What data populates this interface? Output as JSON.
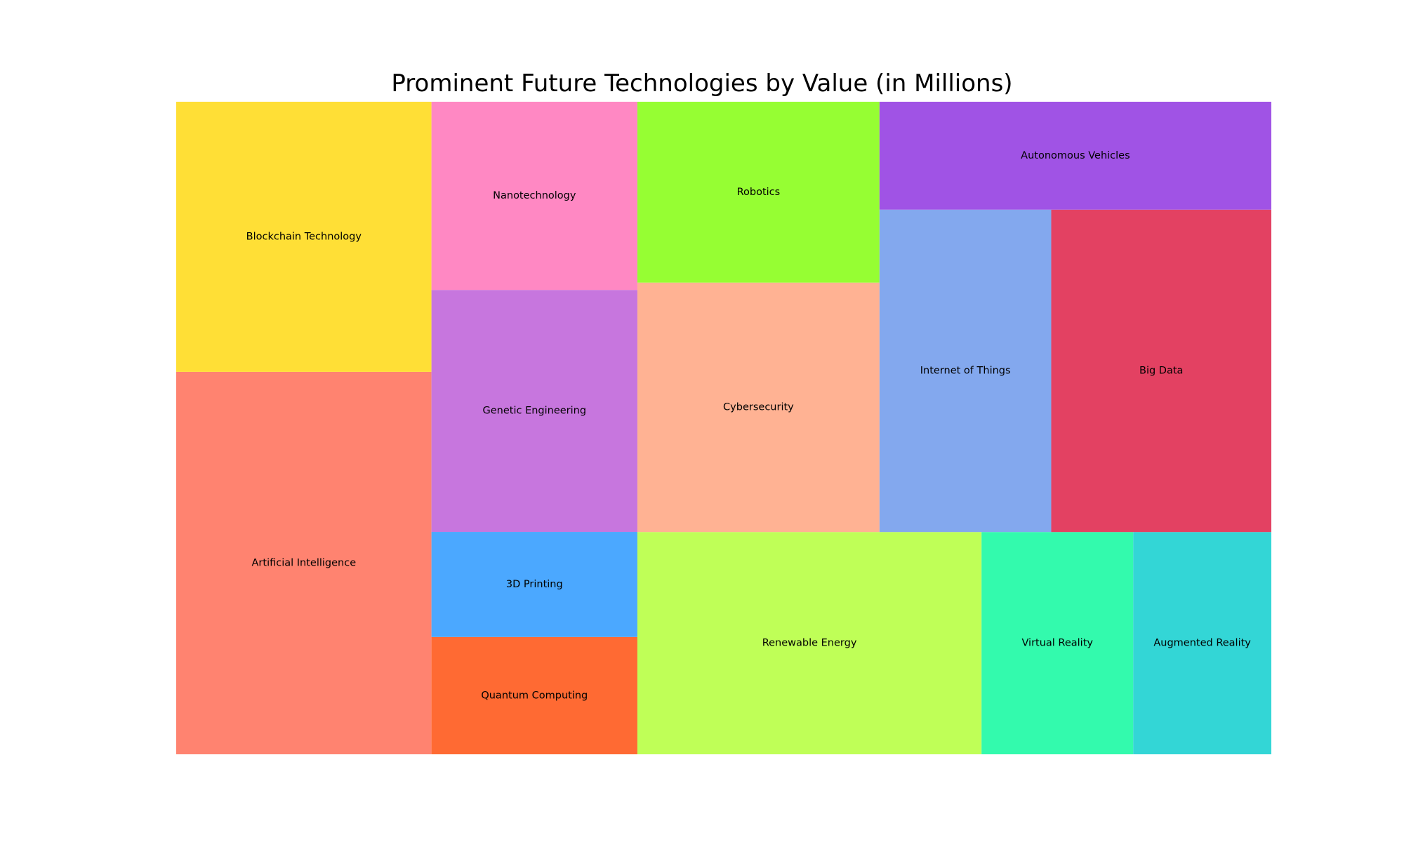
{
  "chart_data": {
    "type": "treemap",
    "title": "Prominent Future Technologies by Value (in Millions)",
    "units": "Millions",
    "items": [
      {
        "label": "Artificial Intelligence",
        "value": 194,
        "color": "#FF8370"
      },
      {
        "label": "Blockchain Technology",
        "value": 137,
        "color": "#FFDF36"
      },
      {
        "label": "Quantum Computing",
        "value": 48,
        "color": "#FF6A33"
      },
      {
        "label": "3D Printing",
        "value": 43,
        "color": "#4BA8FF"
      },
      {
        "label": "Genetic Engineering",
        "value": 99,
        "color": "#C776DE"
      },
      {
        "label": "Nanotechnology",
        "value": 77,
        "color": "#FF88C3"
      },
      {
        "label": "Renewable Energy",
        "value": 152,
        "color": "#BFFF57"
      },
      {
        "label": "Virtual Reality",
        "value": 67,
        "color": "#33FAAD"
      },
      {
        "label": "Augmented Reality",
        "value": 61,
        "color": "#33D6D6"
      },
      {
        "label": "Cybersecurity",
        "value": 120,
        "color": "#FFB293"
      },
      {
        "label": "Robotics",
        "value": 87,
        "color": "#96FE33"
      },
      {
        "label": "Internet of Things",
        "value": 110,
        "color": "#83A8EE"
      },
      {
        "label": "Big Data",
        "value": 141,
        "color": "#E34162"
      },
      {
        "label": "Autonomous Vehicles",
        "value": 84,
        "color": "#A053E5"
      }
    ]
  }
}
